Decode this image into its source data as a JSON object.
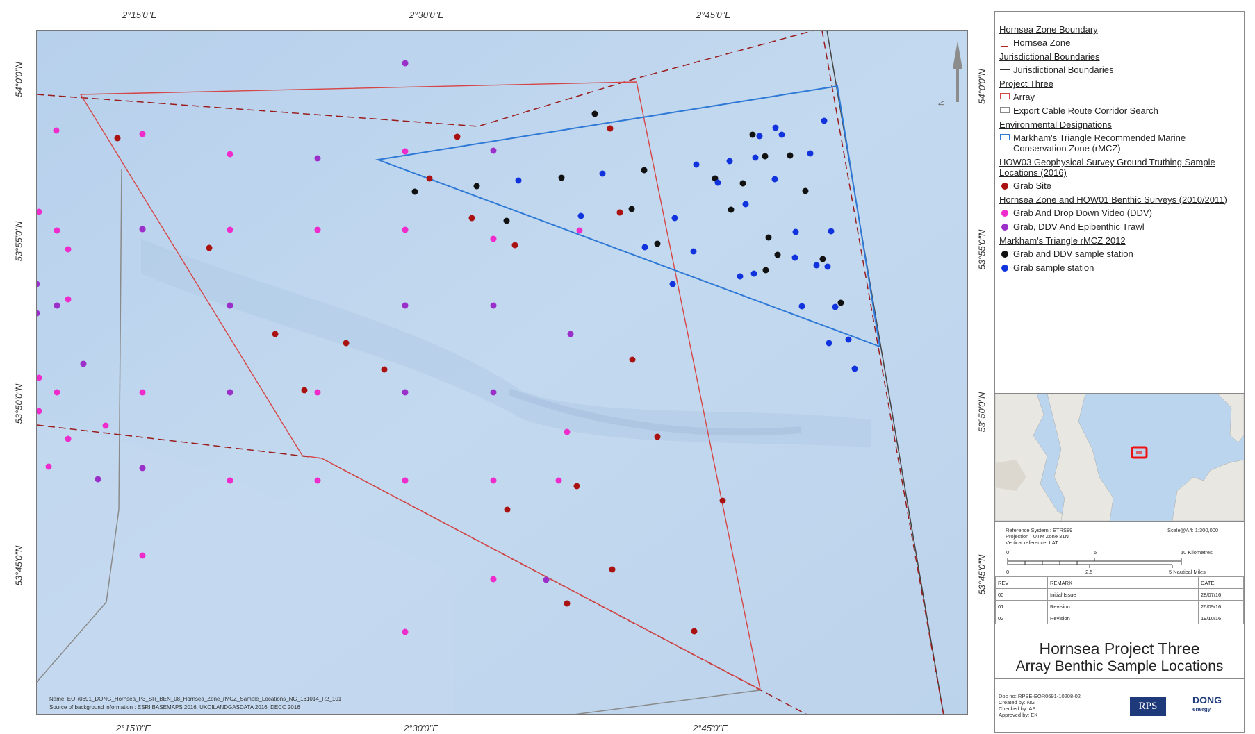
{
  "graticule": {
    "top": [
      "2°15'0\"E",
      "2°30'0\"E",
      "2°45'0\"E"
    ],
    "bottom": [
      "2°15'0\"E",
      "2°30'0\"E",
      "2°45'0\"E"
    ],
    "left": [
      "54°0'0\"N",
      "53°55'0\"N",
      "53°50'0\"N",
      "53°45'0\"N"
    ],
    "right": [
      "54°0'0\"N",
      "53°55'0\"N",
      "53°50'0\"N",
      "53°45'0\"N"
    ]
  },
  "north_arrow_label": "N",
  "map_notes": {
    "name_line": "Name: EOR0691_DONG_Hornsea_P3_SR_BEN_08_Hornsea_Zone_rMCZ_Sample_Locations_NG_161014_R2_101",
    "source_line": "Source of background information : ESRI BASEMAPS 2016, UKOILANDGASDATA 2016, DECC 2016"
  },
  "colors": {
    "sea": "#bed4ec",
    "array": "#d64545",
    "zone": "#9a1c1c",
    "rmcz": "#2f79d6",
    "grab_site": "#aa1111",
    "grab_ddv": "#ee2ccc",
    "grab_ddv_trawl": "#9b2fc9",
    "rmcz_grab_ddv": "#111111",
    "rmcz_grab": "#1133dd"
  },
  "legend": {
    "g1_title": "Hornsea Zone Boundary",
    "g1_item": "Hornsea Zone",
    "g2_title": "Jurisdictional Boundaries",
    "g2_item": "Jurisdictional Boundaries",
    "g3_title": "Project Three",
    "g3_item1": "Array",
    "g3_item2": "Export Cable Route Corridor Search",
    "g4_title": "Environmental Designations",
    "g4_item": "Markham's Triangle Recommended Marine Conservation Zone (rMCZ)",
    "g5_title": "HOW03 Geophysical Survey Ground Truthing Sample Locations (2016)",
    "g5_item": "Grab Site",
    "g6_title": "Hornsea Zone and HOW01 Benthic Surveys (2010/2011)",
    "g6_item1": "Grab And Drop Down Video (DDV)",
    "g6_item2": "Grab, DDV And Epibenthic Trawl",
    "g7_title": "Markham's Triangle rMCZ 2012",
    "g7_item1": "Grab and DDV sample station",
    "g7_item2": "Grab sample station"
  },
  "scale": {
    "ref_system": "Reference System : ETRS89",
    "projection": "Projection : UTM  Zone 31N",
    "vertical": "Vertical reference: LAT",
    "scale_text": "Scale@A4: 1:300,000",
    "km_0": "0",
    "km_5": "5",
    "km_10": "10 Kilometres",
    "nm_0": "0",
    "nm_25": "2.5",
    "nm_5": "5 Nautical Miles"
  },
  "revisions": {
    "headers": [
      "REV",
      "REMARK",
      "DATE"
    ],
    "rows": [
      [
        "00",
        "Initial Issue",
        "28/07/16"
      ],
      [
        "01",
        "Revision",
        "26/09/16"
      ],
      [
        "02",
        "Revision",
        "19/10/16"
      ]
    ]
  },
  "title": {
    "line1": "Hornsea Project Three",
    "line2": "Array Benthic Sample Locations"
  },
  "doc_info": {
    "doc_no": "Doc no: RPSE-EOR0691-10208-02",
    "created": "Created by: NG",
    "checked": "Checked by: AP",
    "approved": "Approved by: EK"
  },
  "logos": {
    "rps": "RPS",
    "dong": "DONG",
    "dong_sub": "energy"
  }
}
